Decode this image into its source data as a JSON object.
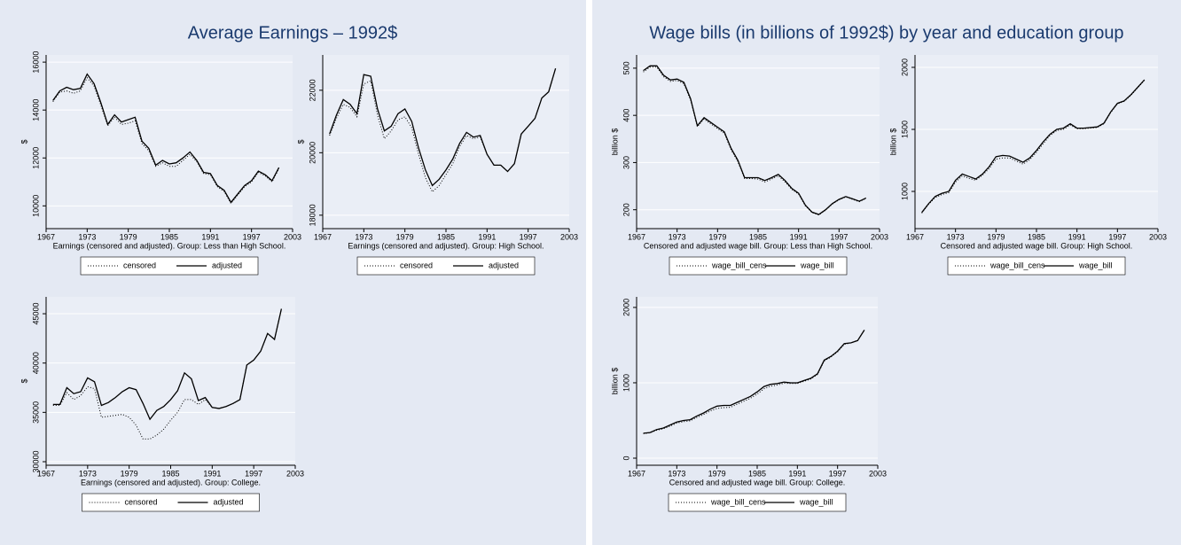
{
  "titles": [
    "Average Earnings – 1992$",
    "Wage bills (in billions of 1992$) by year and education group"
  ],
  "chart_data": [
    {
      "type": "line",
      "x_label": "Earnings (censored and adjusted). Group: Less than  High School.",
      "y_label": "$",
      "xlim": [
        1967,
        2003
      ],
      "xticks": [
        1967,
        1973,
        1979,
        1985,
        1991,
        1997,
        2003
      ],
      "ylim": [
        9050,
        16300
      ],
      "yticks": [
        10000,
        12000,
        14000,
        16000
      ],
      "grid": true,
      "x": [
        1968,
        1969,
        1970,
        1971,
        1972,
        1973,
        1974,
        1975,
        1976,
        1977,
        1978,
        1979,
        1980,
        1981,
        1982,
        1983,
        1984,
        1985,
        1986,
        1987,
        1988,
        1989,
        1990,
        1991,
        1992,
        1993,
        1994,
        1995,
        1996,
        1997,
        1998,
        1999,
        2000,
        2001
      ],
      "series": [
        {
          "name": "censored",
          "color": "#000000",
          "dash": "dotted",
          "values": [
            14350,
            14750,
            14800,
            14700,
            14800,
            15350,
            15000,
            14200,
            13350,
            13700,
            13400,
            13450,
            13550,
            12600,
            12300,
            11650,
            11800,
            11650,
            11650,
            11900,
            12150,
            11850,
            11350,
            11300,
            10800,
            10600,
            10100,
            10450,
            10800,
            11000,
            11400,
            11250,
            11000,
            11550
          ]
        },
        {
          "name": "adjusted",
          "color": "#000000",
          "dash": "solid",
          "values": [
            14400,
            14800,
            14950,
            14850,
            14900,
            15500,
            15100,
            14300,
            13400,
            13800,
            13500,
            13600,
            13700,
            12700,
            12400,
            11700,
            11900,
            11750,
            11800,
            12000,
            12250,
            11900,
            11400,
            11350,
            10850,
            10650,
            10150,
            10500,
            10850,
            11050,
            11450,
            11300,
            11050,
            11600
          ]
        }
      ]
    },
    {
      "type": "line",
      "x_label": "Earnings (censored and adjusted). Group: High School.",
      "y_label": "$",
      "xlim": [
        1967,
        2003
      ],
      "xticks": [
        1967,
        1973,
        1979,
        1985,
        1991,
        1997,
        2003
      ],
      "ylim": [
        17570,
        23130
      ],
      "yticks": [
        18000,
        20000,
        22000
      ],
      "grid": true,
      "x": [
        1968,
        1969,
        1970,
        1971,
        1972,
        1973,
        1974,
        1975,
        1976,
        1977,
        1978,
        1979,
        1980,
        1981,
        1982,
        1983,
        1984,
        1985,
        1986,
        1987,
        1988,
        1989,
        1990,
        1991,
        1992,
        1993,
        1994,
        1995,
        1996,
        1997,
        1998,
        1999,
        2000,
        2001
      ],
      "series": [
        {
          "name": "censored",
          "color": "#000000",
          "dash": "dotted",
          "values": [
            20550,
            21100,
            21550,
            21450,
            21150,
            22200,
            22300,
            21200,
            20450,
            20700,
            21050,
            21150,
            20800,
            19950,
            19200,
            18750,
            18950,
            19300,
            19650,
            20200,
            20550,
            20450,
            20500,
            19950,
            19600,
            19600,
            19400,
            19650,
            20600,
            20850,
            21100,
            21750,
            21950,
            22700
          ]
        },
        {
          "name": "adjusted",
          "color": "#000000",
          "dash": "solid",
          "values": [
            20600,
            21200,
            21700,
            21550,
            21250,
            22500,
            22450,
            21400,
            20700,
            20850,
            21250,
            21400,
            21000,
            20150,
            19450,
            18950,
            19150,
            19450,
            19800,
            20300,
            20650,
            20500,
            20550,
            19950,
            19600,
            19600,
            19400,
            19650,
            20600,
            20850,
            21100,
            21750,
            21950,
            22700
          ]
        }
      ]
    },
    {
      "type": "line",
      "x_label": "Earnings (censored and adjusted). Group: College.",
      "y_label": "$",
      "xlim": [
        1967,
        2003
      ],
      "xticks": [
        1967,
        1973,
        1979,
        1985,
        1991,
        1997,
        2003
      ],
      "ylim": [
        29640,
        46710
      ],
      "yticks": [
        30000,
        35000,
        40000,
        45000
      ],
      "grid": true,
      "x": [
        1968,
        1969,
        1970,
        1971,
        1972,
        1973,
        1974,
        1975,
        1976,
        1977,
        1978,
        1979,
        1980,
        1981,
        1982,
        1983,
        1984,
        1985,
        1986,
        1987,
        1988,
        1989,
        1990,
        1991,
        1992,
        1993,
        1994,
        1995,
        1996,
        1997,
        1998,
        1999,
        2000,
        2001
      ],
      "series": [
        {
          "name": "censored",
          "color": "#000000",
          "dash": "dotted",
          "values": [
            35700,
            35700,
            37000,
            36300,
            36700,
            37600,
            37400,
            34500,
            34600,
            34700,
            34800,
            34500,
            33700,
            32300,
            32300,
            32700,
            33300,
            34200,
            35000,
            36300,
            36300,
            35800,
            36300,
            35500,
            35400,
            35600,
            35900,
            36300,
            39800,
            40300,
            41200,
            43000,
            42400,
            45500
          ]
        },
        {
          "name": "adjusted",
          "color": "#000000",
          "dash": "solid",
          "values": [
            35800,
            35800,
            37500,
            36900,
            37100,
            38500,
            38100,
            35700,
            36000,
            36500,
            37100,
            37500,
            37300,
            35900,
            34300,
            35200,
            35600,
            36300,
            37200,
            39000,
            38400,
            36200,
            36500,
            35500,
            35400,
            35600,
            35900,
            36300,
            39800,
            40300,
            41200,
            43000,
            42400,
            45500
          ]
        }
      ]
    },
    {
      "type": "line",
      "x_label": "Censored and adjusted wage bill. Group: Less than  High School.",
      "y_label": "billion $",
      "xlim": [
        1967,
        2003
      ],
      "xticks": [
        1967,
        1973,
        1979,
        1985,
        1991,
        1997,
        2003
      ],
      "ylim": [
        160,
        528
      ],
      "yticks": [
        200,
        300,
        400,
        500
      ],
      "grid": true,
      "x": [
        1968,
        1969,
        1970,
        1971,
        1972,
        1973,
        1974,
        1975,
        1976,
        1977,
        1978,
        1979,
        1980,
        1981,
        1982,
        1983,
        1984,
        1985,
        1986,
        1987,
        1988,
        1989,
        1990,
        1991,
        1992,
        1993,
        1994,
        1995,
        1996,
        1997,
        1998,
        1999,
        2000,
        2001
      ],
      "series": [
        {
          "name": "wage_bill_cens",
          "color": "#000000",
          "dash": "dotted",
          "values": [
            492,
            502,
            502,
            482,
            472,
            474,
            467,
            432,
            376,
            392,
            382,
            372,
            362,
            327,
            302,
            266,
            266,
            265,
            259,
            265,
            272,
            259,
            243,
            233,
            208,
            194,
            189,
            199,
            212,
            221,
            227,
            222,
            217,
            224
          ]
        },
        {
          "name": "wage_bill",
          "color": "#000000",
          "dash": "solid",
          "values": [
            495,
            505,
            505,
            485,
            475,
            477,
            470,
            435,
            378,
            395,
            385,
            375,
            365,
            330,
            305,
            268,
            268,
            268,
            262,
            268,
            275,
            262,
            245,
            235,
            210,
            195,
            190,
            200,
            213,
            222,
            228,
            223,
            218,
            225
          ]
        }
      ]
    },
    {
      "type": "line",
      "x_label": "Censored and adjusted wage bill. Group: High School.",
      "y_label": "billion $",
      "xlim": [
        1967,
        2003
      ],
      "xticks": [
        1967,
        1973,
        1979,
        1985,
        1991,
        1997,
        2003
      ],
      "ylim": [
        700,
        2100
      ],
      "yticks": [
        1000,
        1500,
        2000
      ],
      "grid": true,
      "x": [
        1968,
        1969,
        1970,
        1971,
        1972,
        1973,
        1974,
        1975,
        1976,
        1977,
        1978,
        1979,
        1980,
        1981,
        1982,
        1983,
        1984,
        1985,
        1986,
        1987,
        1988,
        1989,
        1990,
        1991,
        1992,
        1993,
        1994,
        1995,
        1996,
        1997,
        1998,
        1999,
        2000,
        2001
      ],
      "series": [
        {
          "name": "wage_bill_cens",
          "color": "#000000",
          "dash": "dotted",
          "values": [
            825,
            895,
            950,
            975,
            990,
            1075,
            1125,
            1105,
            1090,
            1130,
            1185,
            1260,
            1270,
            1270,
            1245,
            1220,
            1255,
            1315,
            1385,
            1450,
            1490,
            1500,
            1535,
            1505,
            1505,
            1510,
            1515,
            1545,
            1635,
            1705,
            1725,
            1775,
            1835,
            1895
          ]
        },
        {
          "name": "wage_bill",
          "color": "#000000",
          "dash": "solid",
          "values": [
            830,
            900,
            960,
            985,
            1000,
            1090,
            1140,
            1120,
            1100,
            1140,
            1200,
            1280,
            1290,
            1285,
            1260,
            1235,
            1270,
            1330,
            1400,
            1460,
            1500,
            1510,
            1545,
            1510,
            1510,
            1515,
            1520,
            1550,
            1640,
            1710,
            1730,
            1780,
            1840,
            1900
          ]
        }
      ]
    },
    {
      "type": "line",
      "x_label": "Censored and adjusted wage bill. Group: College.",
      "y_label": "billion $",
      "xlim": [
        1967,
        2003
      ],
      "xticks": [
        1967,
        1973,
        1979,
        1985,
        1991,
        1997,
        2003
      ],
      "ylim": [
        -94,
        2140
      ],
      "yticks": [
        0,
        1000,
        2000
      ],
      "grid": true,
      "x": [
        1968,
        1969,
        1970,
        1971,
        1972,
        1973,
        1974,
        1975,
        1976,
        1977,
        1978,
        1979,
        1980,
        1981,
        1982,
        1983,
        1984,
        1985,
        1986,
        1987,
        1988,
        1989,
        1990,
        1991,
        1992,
        1993,
        1994,
        1995,
        1996,
        1997,
        1998,
        1999,
        2000,
        2001
      ],
      "series": [
        {
          "name": "wage_bill_cens",
          "color": "#000000",
          "dash": "dotted",
          "values": [
            325,
            335,
            370,
            390,
            425,
            465,
            485,
            495,
            540,
            580,
            625,
            660,
            670,
            675,
            715,
            755,
            795,
            850,
            920,
            955,
            970,
            995,
            990,
            990,
            1020,
            1050,
            1110,
            1290,
            1340,
            1410,
            1510,
            1530,
            1560,
            1700
          ]
        },
        {
          "name": "wage_bill",
          "color": "#000000",
          "dash": "solid",
          "values": [
            330,
            340,
            380,
            400,
            440,
            480,
            500,
            510,
            560,
            600,
            650,
            690,
            700,
            700,
            740,
            780,
            820,
            880,
            950,
            980,
            990,
            1010,
            1000,
            1000,
            1030,
            1060,
            1120,
            1300,
            1350,
            1420,
            1520,
            1530,
            1560,
            1700
          ]
        }
      ]
    }
  ]
}
